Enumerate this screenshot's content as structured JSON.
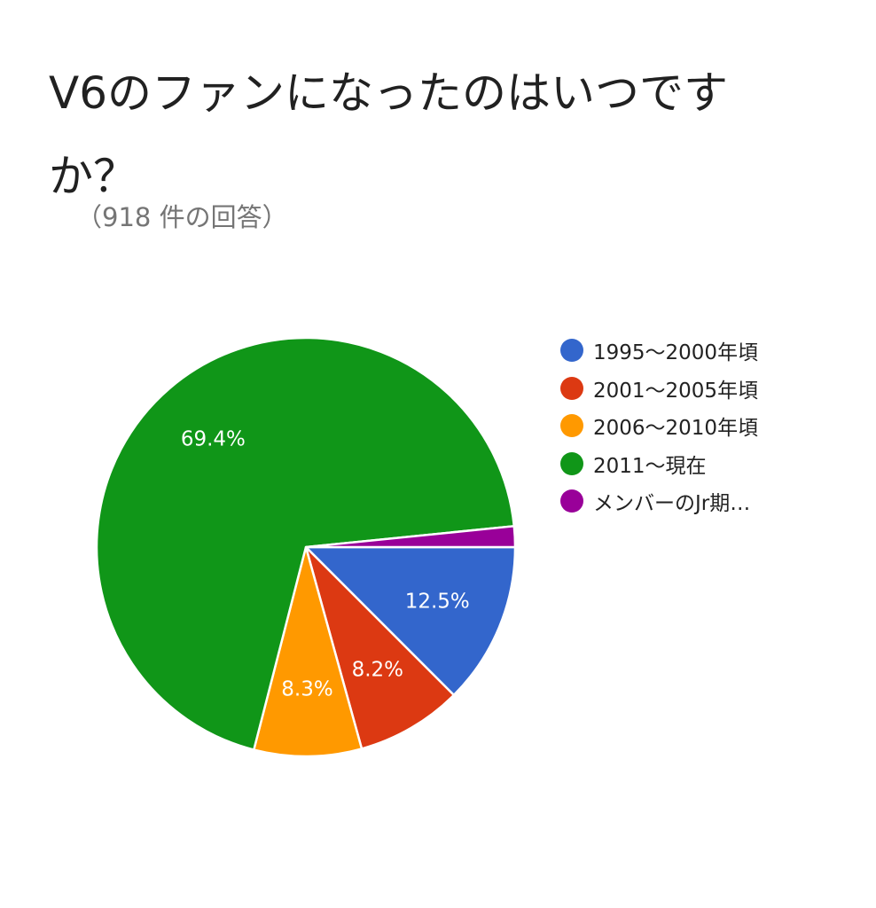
{
  "chart_data": {
    "type": "pie",
    "title": "V6のファンになったのはいつですか？",
    "subtitle": "（918 件の回答）",
    "legend_position": "right",
    "slices": [
      {
        "name": "1995〜2000年頃",
        "value": 12.5,
        "label": "12.5%",
        "color": "#3366cc"
      },
      {
        "name": "2001〜2005年頃",
        "value": 8.2,
        "label": "8.2%",
        "color": "#dc3912"
      },
      {
        "name": "2006〜2010年頃",
        "value": 8.3,
        "label": "8.3%",
        "color": "#ff9900"
      },
      {
        "name": "2011〜現在",
        "value": 69.4,
        "label": "69.4%",
        "color": "#109618"
      },
      {
        "name": "メンバーのJr期…",
        "value": 1.6,
        "label": "",
        "color": "#990099"
      }
    ]
  }
}
